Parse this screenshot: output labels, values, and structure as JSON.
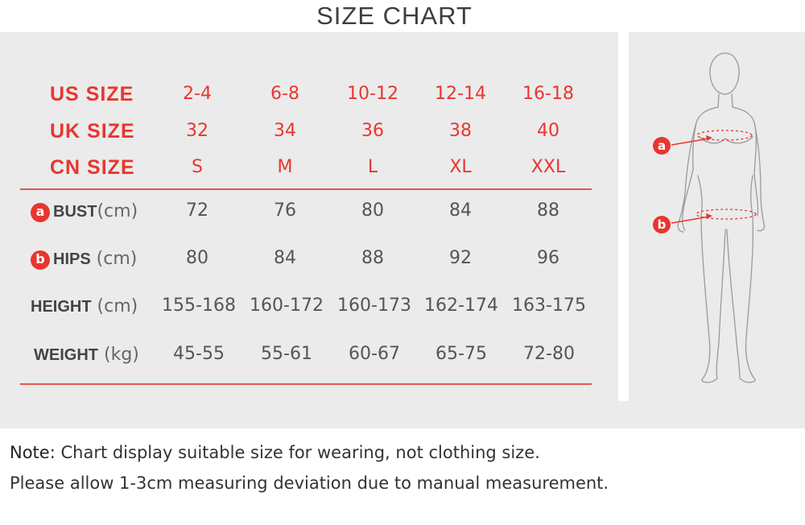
{
  "title": "SIZE CHART",
  "columns": [
    {
      "us": "2-4",
      "uk": "32",
      "cn": "S",
      "bust": "72",
      "hips": "80",
      "height": "155-168",
      "weight": "45-55"
    },
    {
      "us": "6-8",
      "uk": "34",
      "cn": "M",
      "bust": "76",
      "hips": "84",
      "height": "160-172",
      "weight": "55-61"
    },
    {
      "us": "10-12",
      "uk": "36",
      "cn": "L",
      "bust": "80",
      "hips": "88",
      "height": "160-173",
      "weight": "60-67"
    },
    {
      "us": "12-14",
      "uk": "38",
      "cn": "XL",
      "bust": "84",
      "hips": "92",
      "height": "162-174",
      "weight": "65-75"
    },
    {
      "us": "16-18",
      "uk": "40",
      "cn": "XXL",
      "bust": "88",
      "hips": "96",
      "height": "163-175",
      "weight": "72-80"
    }
  ],
  "labels": {
    "us": "US  SIZE",
    "uk": "UK  SIZE",
    "cn": "CN  SIZE",
    "bust": "BUST",
    "bust_unit": "(cm)",
    "bust_badge": "a",
    "hips": "HIPS",
    "hips_unit": " (cm)",
    "hips_badge": "b",
    "height": "HEIGHT",
    "height_unit": " (cm)",
    "weight": "WEIGHT",
    "weight_unit": "  (kg)"
  },
  "figure": {
    "marker_a": "a",
    "marker_b": "b"
  },
  "note": {
    "label": "Note:",
    "line1": " Chart display suitable size for wearing, not clothing size.",
    "line2": "Please allow 1-3cm measuring deviation due to manual measurement."
  },
  "colors": {
    "accent": "#e8362f",
    "band": "#ebebeb",
    "text": "#555555"
  }
}
